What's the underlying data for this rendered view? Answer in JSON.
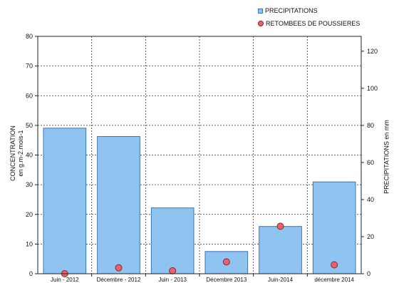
{
  "chart_data": {
    "type": "bar",
    "categories": [
      "Juin - 2012",
      "Décembre - 2012",
      "Juin - 2013",
      "Décembre 2013",
      "Juin-2014",
      "décembre 2014"
    ],
    "series": [
      {
        "name": "PRECIPITATIONS",
        "kind": "bar",
        "axis": "right",
        "color": "#8ec4ef",
        "values": [
          78.5,
          74,
          35.5,
          12,
          25.5,
          49.5
        ]
      },
      {
        "name": "RETOMBEES DE POUSSIERES",
        "kind": "scatter",
        "axis": "left",
        "color": "#e8626a",
        "values": [
          null,
          2,
          1,
          null,
          16,
          3
        ]
      }
    ],
    "dust_point_values": [
      0,
      2,
      1,
      4,
      16,
      3
    ],
    "ylabel_left_lines": [
      "CONCENTRATION",
      "en g.m-2.mois-1"
    ],
    "ylabel_right": "PRECIPITATIONS en mm",
    "ylim_left": [
      0,
      80
    ],
    "ylim_right": [
      0,
      128
    ],
    "yticks_left": [
      "0",
      "10",
      "20",
      "30",
      "40",
      "50",
      "60",
      "70",
      "80"
    ],
    "yticks_right": [
      "0",
      "20",
      "40",
      "60",
      "80",
      "100",
      "120"
    ],
    "grid": true,
    "legend_position": "top-right"
  }
}
